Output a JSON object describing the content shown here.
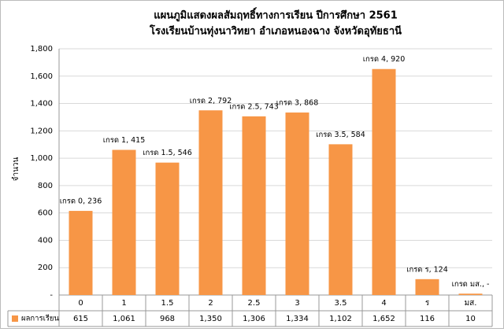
{
  "chart_data": {
    "type": "bar",
    "title": [
      "แผนภูมิแสดงผลสัมฤทธิ์ทางการเรียน ปีการศึกษา 2561",
      "โรงเรียนบ้านทุ่งนาวิทยา อำเภอหนองฉาง จังหวัดอุทัยธานี"
    ],
    "y_label": "จำนวน",
    "categories": [
      "0",
      "1",
      "1.5",
      "2",
      "2.5",
      "3",
      "3.5",
      "4",
      "ร",
      "มส."
    ],
    "series": [
      {
        "name": "ผลการเรียน",
        "color": "#f79646",
        "values": [
          615,
          1061,
          968,
          1350,
          1306,
          1334,
          1102,
          1652,
          116,
          10
        ],
        "value_labels": [
          "615",
          "1,061",
          "968",
          "1,350",
          "1,306",
          "1,334",
          "1,102",
          "1,652",
          "116",
          "10"
        ]
      }
    ],
    "annotations": [
      "เกรด 0, 236",
      "เกรด 1, 415",
      "เกรด 1.5, 546",
      "เกรด 2, 792",
      "เกรด 2.5, 743",
      "เกรด 3, 868",
      "เกรด 3.5, 584",
      "เกรด 4, 920",
      "เกรด ร, 124",
      "เกรด มส., -"
    ],
    "ylim": [
      0,
      1800
    ],
    "yticks": [
      {
        "value": 0,
        "label": "-"
      },
      200,
      400,
      600,
      800,
      {
        "value": 1000,
        "label": "1,000"
      },
      {
        "value": 1200,
        "label": "1,200"
      },
      {
        "value": 1400,
        "label": "1,400"
      },
      {
        "value": 1600,
        "label": "1,600"
      },
      {
        "value": 1800,
        "label": "1,800"
      }
    ],
    "grid": true,
    "data_table": true
  }
}
